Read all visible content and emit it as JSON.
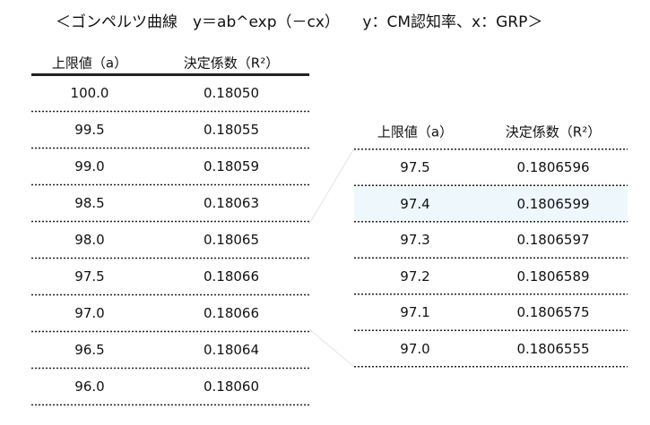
{
  "title": "＜ゴンペルツ曲線　y＝ab^exp（－cx）　　y：CM認知率、x：GRP＞",
  "left_table": {
    "header": [
      "上限値（a）",
      "決定係数（R²）"
    ],
    "rows": [
      [
        "100.0",
        "0.18050"
      ],
      [
        "99.5",
        "0.18055"
      ],
      [
        "99.0",
        "0.18059"
      ],
      [
        "98.5",
        "0.18063"
      ],
      [
        "98.0",
        "0.18065"
      ],
      [
        "97.5",
        "0.18066"
      ],
      [
        "97.0",
        "0.18066"
      ],
      [
        "96.5",
        "0.18064"
      ],
      [
        "96.0",
        "0.18060"
      ]
    ]
  },
  "right_table": {
    "header": [
      "上限値（a）",
      "決定係数（R²）"
    ],
    "rows": [
      [
        "97.5",
        "0.1806596"
      ],
      [
        "97.4",
        "0.1806599"
      ],
      [
        "97.3",
        "0.1806597"
      ],
      [
        "97.2",
        "0.1806589"
      ],
      [
        "97.1",
        "0.1806575"
      ],
      [
        "97.0",
        "0.1806555"
      ]
    ]
  }
}
